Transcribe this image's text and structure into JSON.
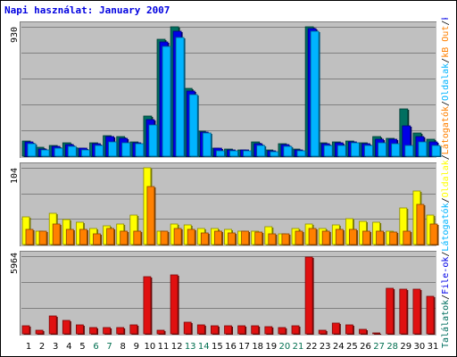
{
  "title": "Napi használat: January 2007",
  "colors": {
    "background": "#c0c0c0",
    "grid": "#808080",
    "title": "#0000e0",
    "weekday": "#000000",
    "weekend": "#006f50",
    "hits": "#006f60",
    "files": "#0000e6",
    "visits": "#00b4ff",
    "pages": "#ffff00",
    "sites": "#ff8000",
    "kbin": "#e01010"
  },
  "legend": [
    {
      "label": "Találatok",
      "color": "#006f60"
    },
    {
      "label": "/",
      "color": "#000000"
    },
    {
      "label": "File-ok",
      "color": "#0000e6"
    },
    {
      "label": "/",
      "color": "#000000"
    },
    {
      "label": "Látogatók",
      "color": "#00b4ff"
    },
    {
      "label": "/",
      "color": "#000000"
    },
    {
      "label": "Oldalak",
      "color": "#ffff00"
    },
    {
      "label": "/",
      "color": "#000000"
    },
    {
      "label": "Látogatók",
      "color": "#ff8000"
    },
    {
      "label": "/",
      "color": "#000000"
    },
    {
      "label": "Oldalak",
      "color": "#00b4ff"
    },
    {
      "label": "/",
      "color": "#000000"
    },
    {
      "label": "kB Out",
      "color": "#ff8000"
    },
    {
      "label": "/",
      "color": "#000000"
    },
    {
      "label": "kB In",
      "color": "#0000e6"
    },
    {
      "label": "/",
      "color": "#000000"
    },
    {
      "label": "kB F",
      "color": "#e01010"
    }
  ],
  "chart_data": {
    "type": "bar",
    "title": "Napi használat: January 2007",
    "categories": [
      "1",
      "2",
      "3",
      "4",
      "5",
      "6",
      "7",
      "8",
      "9",
      "10",
      "11",
      "12",
      "13",
      "14",
      "15",
      "16",
      "17",
      "18",
      "19",
      "20",
      "21",
      "22",
      "23",
      "24",
      "25",
      "26",
      "27",
      "28",
      "29",
      "30",
      "31"
    ],
    "weekend_days": [
      "6",
      "7",
      "13",
      "14",
      "20",
      "21",
      "27",
      "28"
    ],
    "panels": [
      {
        "name": "top",
        "max_label": "930",
        "ymax": 930,
        "series": [
          {
            "name": "Találatok",
            "color": "#006f60",
            "values": [
              110,
              65,
              80,
              95,
              60,
              95,
              150,
              140,
              105,
              290,
              840,
              930,
              490,
              180,
              60,
              50,
              45,
              100,
              45,
              90,
              50,
              930,
              95,
              100,
              110,
              95,
              140,
              130,
              340,
              165,
              120
            ]
          },
          {
            "name": "File-ok",
            "color": "#0000e6",
            "values": [
              100,
              50,
              70,
              85,
              55,
              90,
              140,
              130,
              95,
              260,
              820,
              900,
              470,
              170,
              55,
              45,
              45,
              90,
              40,
              85,
              45,
              920,
              90,
              95,
              100,
              90,
              125,
              120,
              220,
              140,
              100
            ]
          },
          {
            "name": "Látogatók",
            "color": "#00b4ff",
            "values": [
              90,
              45,
              60,
              70,
              45,
              80,
              100,
              95,
              90,
              225,
              790,
              850,
              440,
              165,
              40,
              40,
              40,
              80,
              35,
              70,
              40,
              900,
              80,
              80,
              95,
              80,
              95,
              90,
              80,
              100,
              80
            ]
          }
        ]
      },
      {
        "name": "middle",
        "max_label": "104",
        "ymax": 104,
        "series": [
          {
            "name": "Oldalak",
            "color": "#ffff00",
            "values": [
              38,
              18,
              42,
              34,
              30,
              22,
              25,
              28,
              40,
              104,
              18,
              28,
              26,
              22,
              22,
              20,
              18,
              18,
              24,
              15,
              22,
              28,
              22,
              26,
              35,
              32,
              30,
              18,
              50,
              72,
              40
            ]
          },
          {
            "name": "Látogatók",
            "color": "#ff8000",
            "values": [
              20,
              18,
              28,
              20,
              20,
              15,
              22,
              18,
              18,
              78,
              18,
              22,
              20,
              16,
              18,
              16,
              18,
              17,
              14,
              14,
              18,
              22,
              18,
              20,
              20,
              18,
              18,
              17,
              18,
              55,
              28
            ]
          }
        ]
      },
      {
        "name": "bottom",
        "max_label": "5964",
        "ymax": 5964,
        "series": [
          {
            "name": "kB F",
            "color": "#e01010",
            "values": [
              650,
              300,
              1350,
              1050,
              700,
              500,
              500,
              450,
              700,
              4400,
              250,
              4500,
              900,
              700,
              600,
              600,
              650,
              600,
              550,
              500,
              600,
              5900,
              300,
              800,
              700,
              350,
              100,
              3500,
              3400,
              3450,
              2900
            ]
          }
        ]
      }
    ]
  }
}
